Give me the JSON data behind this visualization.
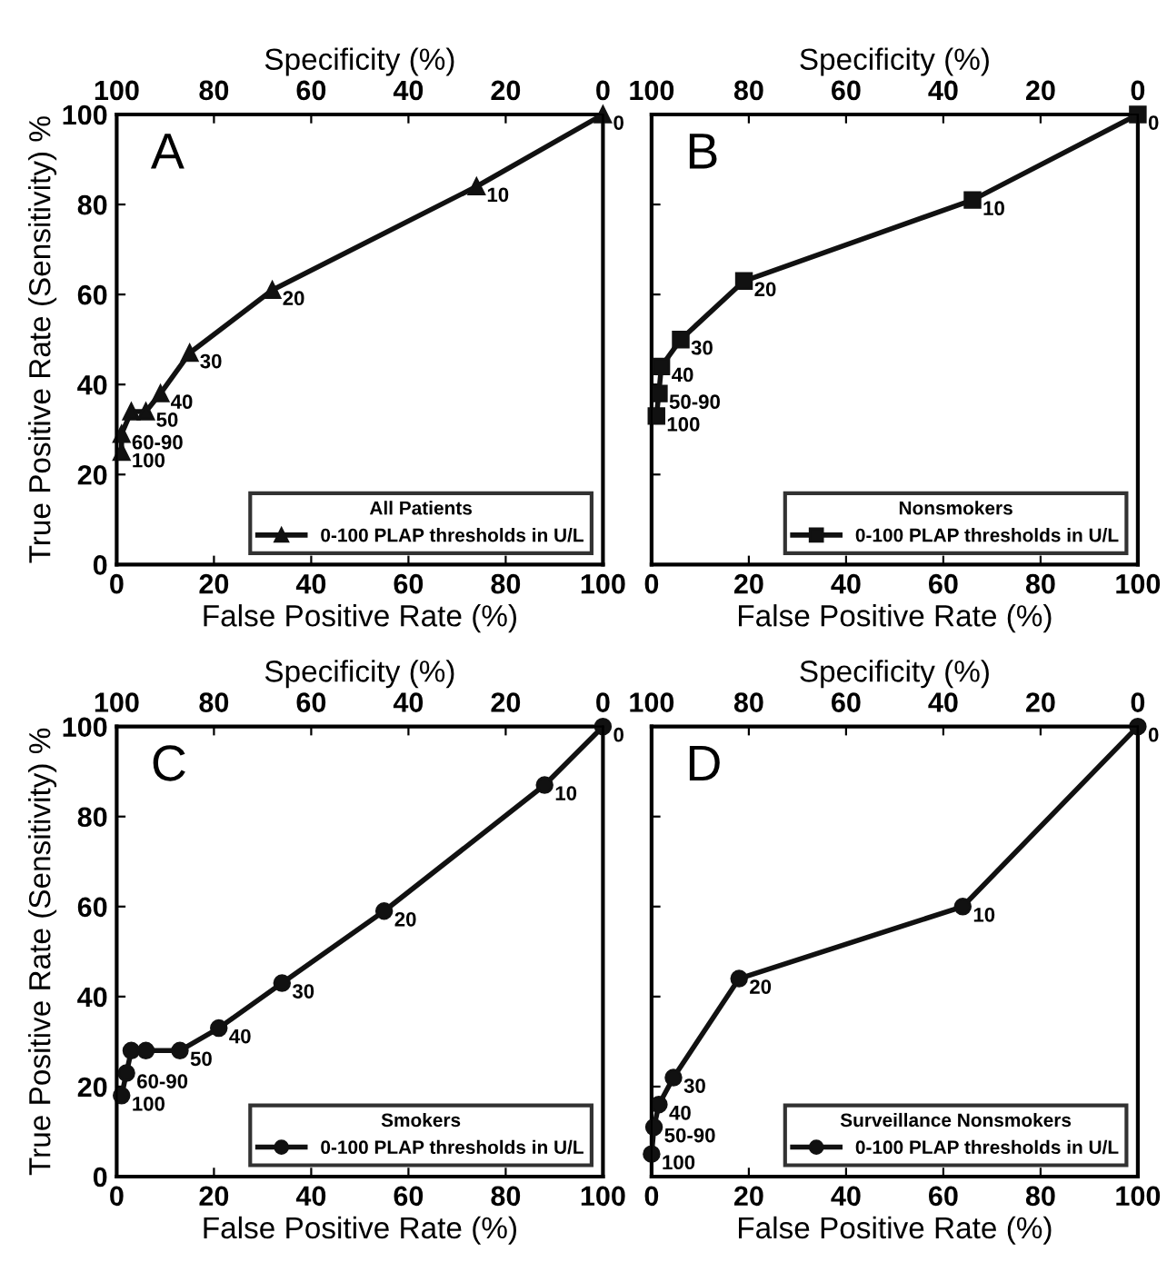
{
  "chart_data": [
    {
      "type": "line",
      "xlabel": "False Positive Rate (%)",
      "x2label": "Specificity (%)",
      "ylabel": "True Positive Rate (Sensitivity) %",
      "legend_title": "All Patients",
      "legend": "bottom right",
      "marker": "triangle",
      "line_style": "solid",
      "grid": false,
      "xlim": [
        0,
        100
      ],
      "xticks": [
        0,
        20,
        40,
        60,
        80,
        100
      ],
      "x2lim": [
        100,
        0
      ],
      "x2ticks": [
        100,
        80,
        60,
        40,
        20,
        0
      ],
      "ylim": [
        0,
        100
      ],
      "yticks": [
        0,
        20,
        40,
        60,
        80,
        100
      ],
      "series": [
        {
          "name": "0-100 PLAP thresholds in U/L",
          "color": "#111111",
          "x": [
            1,
            1,
            3,
            6,
            9,
            15,
            32,
            74,
            100
          ],
          "values": [
            25,
            29,
            34,
            34,
            38,
            47,
            61,
            84,
            100
          ]
        }
      ],
      "annotations": [
        "A",
        {
          "text": "100",
          "x": 1,
          "y": 25
        },
        {
          "text": "60-90",
          "x": 1,
          "y": 29
        },
        {
          "text": "50",
          "x": 6,
          "y": 34
        },
        {
          "text": "40",
          "x": 9,
          "y": 38
        },
        {
          "text": "30",
          "x": 15,
          "y": 47
        },
        {
          "text": "20",
          "x": 32,
          "y": 61
        },
        {
          "text": "10",
          "x": 74,
          "y": 84
        },
        {
          "text": "0",
          "x": 100,
          "y": 100
        }
      ]
    },
    {
      "type": "line",
      "xlabel": "False Positive Rate (%)",
      "x2label": "Specificity (%)",
      "legend_title": "Nonsmokers",
      "legend": "bottom right",
      "marker": "square",
      "line_style": "solid",
      "grid": false,
      "tick_labels": "x",
      "xlim": [
        0,
        100
      ],
      "xticks": [
        0,
        20,
        40,
        60,
        80,
        100
      ],
      "x2lim": [
        100,
        0
      ],
      "x2ticks": [
        100,
        80,
        60,
        40,
        20,
        0
      ],
      "ylim": [
        0,
        100
      ],
      "yticks": [
        0,
        20,
        40,
        60,
        80,
        100
      ],
      "series": [
        {
          "name": "0-100 PLAP thresholds in U/L",
          "color": "#111111",
          "x": [
            1,
            1.5,
            2,
            6,
            19,
            66,
            100
          ],
          "values": [
            33,
            38,
            44,
            50,
            63,
            81,
            100
          ]
        }
      ],
      "annotations": [
        "B",
        {
          "text": "100",
          "x": 1,
          "y": 33
        },
        {
          "text": "50-90",
          "x": 1.5,
          "y": 38
        },
        {
          "text": "40",
          "x": 2,
          "y": 44
        },
        {
          "text": "30",
          "x": 6,
          "y": 50
        },
        {
          "text": "20",
          "x": 19,
          "y": 63
        },
        {
          "text": "10",
          "x": 66,
          "y": 81
        },
        {
          "text": "0",
          "x": 100,
          "y": 100
        }
      ]
    },
    {
      "type": "line",
      "xlabel": "False Positive Rate (%)",
      "x2label": "Specificity (%)",
      "ylabel": "True Positive Rate (Sensitivity) %",
      "legend_title": "Smokers",
      "legend": "bottom right",
      "marker": "circle",
      "line_style": "solid",
      "grid": false,
      "xlim": [
        0,
        100
      ],
      "xticks": [
        0,
        20,
        40,
        60,
        80,
        100
      ],
      "x2lim": [
        100,
        0
      ],
      "x2ticks": [
        100,
        80,
        60,
        40,
        20,
        0
      ],
      "ylim": [
        0,
        100
      ],
      "yticks": [
        0,
        20,
        40,
        60,
        80,
        100
      ],
      "series": [
        {
          "name": "0-100 PLAP thresholds in U/L",
          "color": "#111111",
          "x": [
            1,
            2,
            3,
            6,
            13,
            21,
            34,
            55,
            88,
            100
          ],
          "values": [
            18,
            23,
            28,
            28,
            28,
            33,
            43,
            59,
            87,
            100
          ]
        }
      ],
      "annotations": [
        "C",
        {
          "text": "100",
          "x": 1,
          "y": 18
        },
        {
          "text": "60-90",
          "x": 2,
          "y": 23
        },
        {
          "text": "50",
          "x": 13,
          "y": 28
        },
        {
          "text": "40",
          "x": 21,
          "y": 33
        },
        {
          "text": "30",
          "x": 34,
          "y": 43
        },
        {
          "text": "20",
          "x": 55,
          "y": 59
        },
        {
          "text": "10",
          "x": 88,
          "y": 87
        },
        {
          "text": "0",
          "x": 100,
          "y": 100
        }
      ]
    },
    {
      "type": "line",
      "xlabel": "False Positive Rate (%)",
      "x2label": "Specificity (%)",
      "legend_title": "Surveillance Nonsmokers",
      "legend": "bottom right",
      "marker": "circle",
      "line_style": "solid",
      "grid": false,
      "tick_labels": "x",
      "xlim": [
        0,
        100
      ],
      "xticks": [
        0,
        20,
        40,
        60,
        80,
        100
      ],
      "x2lim": [
        100,
        0
      ],
      "x2ticks": [
        100,
        80,
        60,
        40,
        20,
        0
      ],
      "ylim": [
        0,
        100
      ],
      "yticks": [
        0,
        20,
        40,
        60,
        80,
        100
      ],
      "series": [
        {
          "name": "0-100 PLAP thresholds in U/L",
          "color": "#111111",
          "x": [
            0,
            0.5,
            1.5,
            4.5,
            18,
            64,
            100
          ],
          "values": [
            5,
            11,
            16,
            22,
            44,
            60,
            100
          ]
        }
      ],
      "annotations": [
        "D",
        {
          "text": "100",
          "x": 0,
          "y": 5
        },
        {
          "text": "50-90",
          "x": 0.5,
          "y": 11
        },
        {
          "text": "40",
          "x": 1.5,
          "y": 16
        },
        {
          "text": "30",
          "x": 4.5,
          "y": 22
        },
        {
          "text": "20",
          "x": 18,
          "y": 44
        },
        {
          "text": "10",
          "x": 64,
          "y": 60
        },
        {
          "text": "0",
          "x": 100,
          "y": 100
        }
      ]
    }
  ]
}
